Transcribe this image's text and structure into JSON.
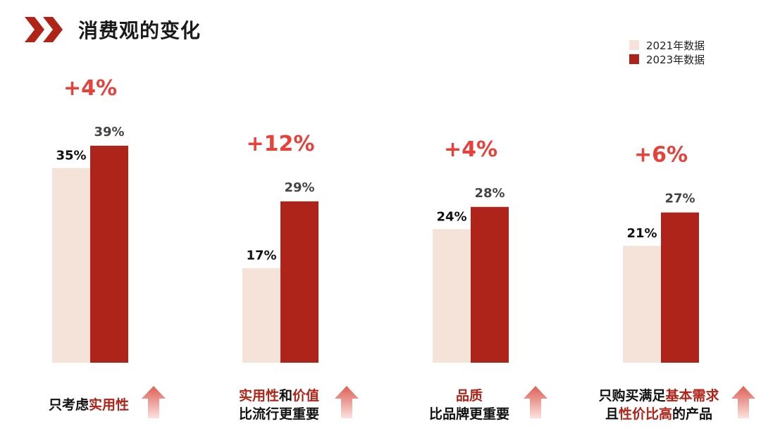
{
  "title": "消费观的变化",
  "colors": {
    "y2021": "#f5e2d9",
    "y2023": "#af241a",
    "accent": "#e8413a",
    "arrow_top": "#dd5f55",
    "arrow_bottom": "#fbe2de"
  },
  "legend": [
    {
      "label": "2021年数据",
      "color": "#f5e2d9"
    },
    {
      "label": "2023年数据",
      "color": "#af241a"
    }
  ],
  "chart_data": {
    "type": "bar",
    "categories": [
      "只考虑实用性",
      "实用性和价值比流行更重要",
      "品质比品牌更重要",
      "只购买满足基本需求且性价比高的产品"
    ],
    "series": [
      {
        "name": "2021年数据",
        "values": [
          35,
          17,
          24,
          21
        ]
      },
      {
        "name": "2023年数据",
        "values": [
          39,
          29,
          28,
          27
        ]
      }
    ],
    "value_labels": {
      "2021": [
        "35%",
        "17%",
        "24%",
        "21%"
      ],
      "2023": [
        "39%",
        "29%",
        "28%",
        "27%"
      ]
    },
    "changes": [
      "+4%",
      "+12%",
      "+4%",
      "+6%"
    ],
    "ylim": [
      0,
      40
    ],
    "grid": false,
    "legend_position": "top-right"
  },
  "captions": [
    {
      "lines": [
        [
          {
            "t": "只考虑",
            "hl": false
          },
          {
            "t": "实用性",
            "hl": true
          }
        ]
      ]
    },
    {
      "lines": [
        [
          {
            "t": "实用性",
            "hl": true
          },
          {
            "t": "和",
            "hl": false
          },
          {
            "t": "价值",
            "hl": true
          }
        ],
        [
          {
            "t": "比流行更重要",
            "hl": false
          }
        ]
      ]
    },
    {
      "lines": [
        [
          {
            "t": "品质",
            "hl": true
          }
        ],
        [
          {
            "t": "比品牌更重要",
            "hl": false
          }
        ]
      ]
    },
    {
      "lines": [
        [
          {
            "t": "只购买满足",
            "hl": false
          },
          {
            "t": "基本需求",
            "hl": true
          }
        ],
        [
          {
            "t": "且",
            "hl": false
          },
          {
            "t": "性价比高",
            "hl": true
          },
          {
            "t": "的产品",
            "hl": false
          }
        ]
      ]
    }
  ]
}
